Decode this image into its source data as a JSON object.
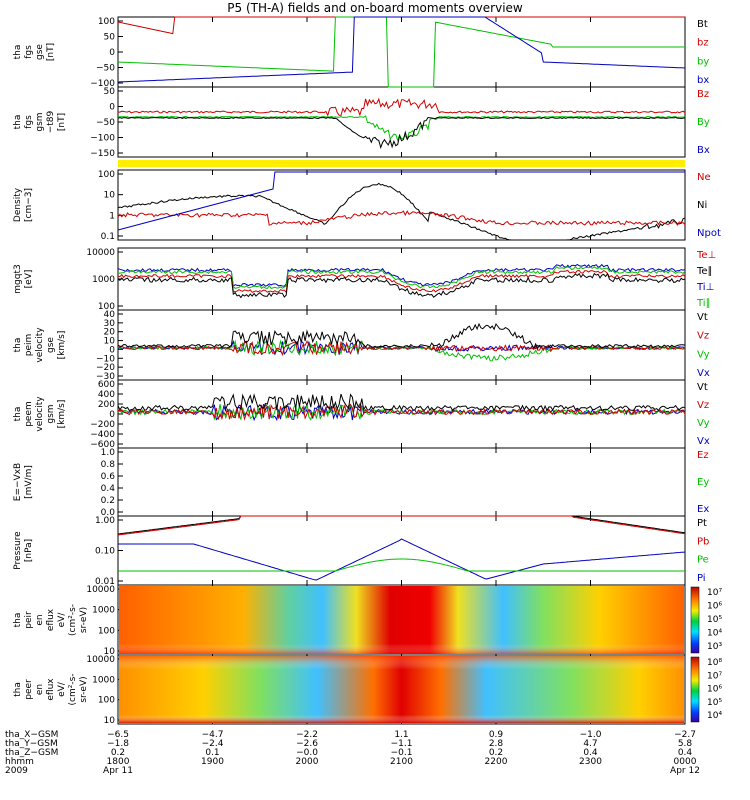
{
  "title": "P5 (TH-A) fields and on-board moments overview",
  "chart_data": {
    "type": "line",
    "title": "P5 (TH-A) fields and on-board moments overview",
    "x_ticks": [
      "1800",
      "1900",
      "2000",
      "2100",
      "2200",
      "2300",
      "0000"
    ],
    "panels": [
      {
        "id": "fgs-gse",
        "ylabel": [
          "tha",
          "fgs",
          "gse",
          "[nT]"
        ],
        "ylim": [
          -100,
          100
        ],
        "yticks": [
          "100",
          "50",
          "0",
          "−50",
          "−100"
        ],
        "legend": [
          {
            "name": "Bt",
            "color": "#000000"
          },
          {
            "name": "bz",
            "color": "#d00000"
          },
          {
            "name": "by",
            "color": "#00c000"
          },
          {
            "name": "bx",
            "color": "#0000c0"
          }
        ]
      },
      {
        "id": "fgs-gsm-t89",
        "ylabel": [
          "tha",
          "fgs",
          "gsm",
          "−t89",
          "[nT]"
        ],
        "ylim": [
          -175,
          75
        ],
        "yticks": [
          "50",
          "0",
          "−50",
          "−100",
          "−150"
        ],
        "legend": [
          {
            "name": "Bz",
            "color": "#d00000"
          },
          {
            "name": "By",
            "color": "#00c000"
          },
          {
            "name": "Bx",
            "color": "#0000c0"
          }
        ]
      },
      {
        "id": "density",
        "ylabel": [
          "Density",
          "[cm−3]"
        ],
        "yticks": [
          "100",
          "10",
          "1",
          "0.1"
        ],
        "legend": [
          {
            "name": "Ne",
            "color": "#d00000"
          },
          {
            "name": "Ni",
            "color": "#000000"
          },
          {
            "name": "Npot",
            "color": "#0000c0"
          }
        ]
      },
      {
        "id": "temperature",
        "ylabel": [
          "mgqt3",
          "[eV]"
        ],
        "yticks": [
          "10000",
          "1000",
          "100"
        ],
        "legend": [
          {
            "name": "Te⊥",
            "color": "#d00000"
          },
          {
            "name": "Te∥",
            "color": "#000000"
          },
          {
            "name": "Ti⊥",
            "color": "#0000c0"
          },
          {
            "name": "Ti∥",
            "color": "#00c000"
          }
        ]
      },
      {
        "id": "peim-velocity-gse",
        "ylabel": [
          "tha",
          "peim",
          "velocity",
          "gse",
          "[km/s]"
        ],
        "ylim": [
          -30,
          40
        ],
        "yticks": [
          "40",
          "30",
          "20",
          "10",
          "0",
          "−10",
          "−20",
          "−30"
        ],
        "legend": [
          {
            "name": "Vt",
            "color": "#000000"
          },
          {
            "name": "Vz",
            "color": "#d00000"
          },
          {
            "name": "Vy",
            "color": "#00c000"
          },
          {
            "name": "Vx",
            "color": "#0000c0"
          }
        ]
      },
      {
        "id": "peem-velocity-gsm",
        "ylabel": [
          "tha",
          "peem",
          "velocity",
          "gsm",
          "[km/s]"
        ],
        "ylim": [
          -600,
          600
        ],
        "yticks": [
          "600",
          "400",
          "200",
          "0",
          "−200",
          "−400",
          "−600"
        ],
        "legend": [
          {
            "name": "Vt",
            "color": "#000000"
          },
          {
            "name": "Vz",
            "color": "#d00000"
          },
          {
            "name": "Vy",
            "color": "#00c000"
          },
          {
            "name": "Vx",
            "color": "#0000c0"
          }
        ]
      },
      {
        "id": "efield",
        "ylabel": [
          "E=−VxB",
          "[mV/m]"
        ],
        "ylim": [
          0,
          1
        ],
        "yticks": [
          "1.0",
          "0.8",
          "0.6",
          "0.4",
          "0.2",
          "0.0"
        ],
        "legend": [
          {
            "name": "Ez",
            "color": "#d00000"
          },
          {
            "name": "Ey",
            "color": "#00c000"
          },
          {
            "name": "Ex",
            "color": "#0000c0"
          }
        ]
      },
      {
        "id": "pressure",
        "ylabel": [
          "Pressure",
          "[nPa]"
        ],
        "yticks": [
          "1.00",
          "0.10",
          "0.01"
        ],
        "legend": [
          {
            "name": "Pt",
            "color": "#000000"
          },
          {
            "name": "Pb",
            "color": "#d00000"
          },
          {
            "name": "Pe",
            "color": "#00c000"
          },
          {
            "name": "Pi",
            "color": "#0000c0"
          }
        ]
      },
      {
        "id": "peir-spectrogram",
        "type": "heatmap",
        "ylabel": [
          "tha",
          "peir",
          "en",
          "eflux",
          "eV/",
          "(cm²-s-",
          "sr-eV)"
        ],
        "yticks": [
          "10000",
          "1000",
          "100",
          "10"
        ],
        "colorbar_ticks": [
          "10⁷",
          "10⁶",
          "10⁵",
          "10⁴",
          "10³"
        ]
      },
      {
        "id": "peer-spectrogram",
        "type": "heatmap",
        "ylabel": [
          "tha",
          "peer",
          "en",
          "eflux",
          "eV/",
          "(cm²-s-",
          "sr-eV)"
        ],
        "yticks": [
          "10000",
          "1000",
          "100",
          "10"
        ],
        "colorbar_ticks": [
          "10⁸",
          "10⁷",
          "10⁶",
          "10⁵",
          "10⁴"
        ]
      }
    ],
    "ephemeris": {
      "rows": [
        {
          "label": "tha_X−GSM",
          "values": [
            "−6.5",
            "−4.7",
            "−2.2",
            "1.1",
            "0.9",
            "−1.0",
            "−2.7"
          ]
        },
        {
          "label": "tha_Y−GSM",
          "values": [
            "−1.8",
            "−2.4",
            "−2.6",
            "−1.1",
            "2.8",
            "4.7",
            "5.8"
          ]
        },
        {
          "label": "tha_Z−GSM",
          "values": [
            "0.2",
            "0.1",
            "−0.0",
            "−0.1",
            "0.2",
            "0.4",
            "0.4"
          ]
        },
        {
          "label": "hhmm",
          "values": [
            "1800",
            "1900",
            "2000",
            "2100",
            "2200",
            "2300",
            "0000"
          ]
        }
      ],
      "year": "2009",
      "date_start": "Apr 11",
      "date_end": "Apr 12"
    }
  }
}
